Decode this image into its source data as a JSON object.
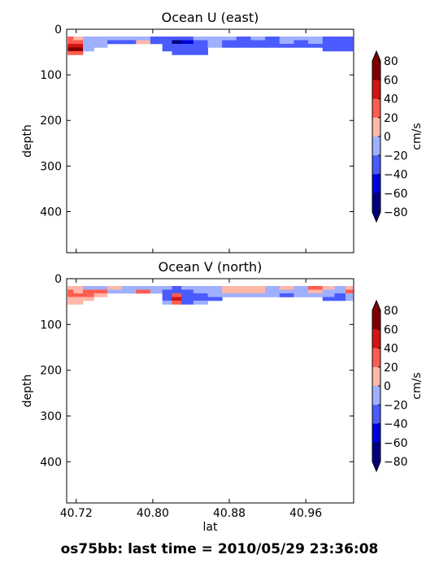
{
  "figure_title": "os75bb: last time = 2010/05/29 23:36:08",
  "colors": {
    "levels": [
      "#00007f",
      "#0000dd",
      "#4a5bff",
      "#9fb0ff",
      "#ffb7a8",
      "#ff5c50",
      "#d11414",
      "#7f0000"
    ]
  },
  "chart_data": [
    {
      "type": "heatmap",
      "title": "Ocean U (east)",
      "xlabel": "",
      "ylabel": "depth",
      "xlim": [
        40.71,
        41.01
      ],
      "ylim": [
        490,
        0
      ],
      "x_ticks": [
        "40.72",
        "40.80",
        "40.88",
        "40.96"
      ],
      "y_ticks": [
        "0",
        "100",
        "200",
        "300",
        "400"
      ],
      "colorbar": {
        "label": "cm/s",
        "ticks": [
          "80",
          "60",
          "40",
          "20",
          "0",
          "−20",
          "−40",
          "−60",
          "−80"
        ],
        "range": [
          -80,
          80
        ]
      },
      "grid": false,
      "depths": [
        20,
        28,
        36,
        44,
        52
      ],
      "columns": [
        {
          "lat": 40.712,
          "v": [
            20,
            25,
            45,
            65,
            20
          ]
        },
        {
          "lat": 40.722,
          "v": [
            15,
            30,
            40,
            60,
            25
          ]
        },
        {
          "lat": 40.732,
          "v": [
            -5,
            -10,
            -15,
            -20,
            null
          ]
        },
        {
          "lat": 40.745,
          "v": [
            -10,
            -15,
            -15,
            null,
            null
          ]
        },
        {
          "lat": 40.76,
          "v": [
            -15,
            -25,
            null,
            null,
            null
          ]
        },
        {
          "lat": 40.775,
          "v": [
            -20,
            -30,
            null,
            null,
            null
          ]
        },
        {
          "lat": 40.79,
          "v": [
            -5,
            10,
            null,
            null,
            null
          ]
        },
        {
          "lat": 40.805,
          "v": [
            -25,
            -35,
            null,
            null,
            null
          ]
        },
        {
          "lat": 40.815,
          "v": [
            -30,
            -40,
            -35,
            -30,
            null
          ]
        },
        {
          "lat": 40.825,
          "v": [
            -40,
            -65,
            -40,
            -35,
            -30
          ]
        },
        {
          "lat": 40.835,
          "v": [
            -35,
            -45,
            -40,
            -35,
            -30
          ]
        },
        {
          "lat": 40.85,
          "v": [
            -15,
            -25,
            -40,
            -35,
            -30
          ]
        },
        {
          "lat": 40.865,
          "v": [
            -5,
            -10,
            -20,
            null,
            null
          ]
        },
        {
          "lat": 40.88,
          "v": [
            -20,
            -30,
            -35,
            null,
            null
          ]
        },
        {
          "lat": 40.895,
          "v": [
            -25,
            -35,
            -40,
            null,
            null
          ]
        },
        {
          "lat": 40.91,
          "v": [
            -15,
            -25,
            -35,
            null,
            null
          ]
        },
        {
          "lat": 40.925,
          "v": [
            -30,
            -30,
            -35,
            null,
            null
          ]
        },
        {
          "lat": 40.94,
          "v": [
            -10,
            -20,
            -30,
            null,
            null
          ]
        },
        {
          "lat": 40.955,
          "v": [
            -20,
            -30,
            -35,
            null,
            null
          ]
        },
        {
          "lat": 40.97,
          "v": [
            -15,
            -10,
            -25,
            null,
            null
          ]
        },
        {
          "lat": 40.985,
          "v": [
            -25,
            -35,
            -30,
            -30,
            null
          ]
        },
        {
          "lat": 40.995,
          "v": [
            -30,
            -40,
            -30,
            -25,
            null
          ]
        },
        {
          "lat": 41.008,
          "v": [
            -35,
            -25,
            -25,
            -30,
            null
          ]
        }
      ]
    },
    {
      "type": "heatmap",
      "title": "Ocean V (north)",
      "xlabel": "lat",
      "ylabel": "depth",
      "xlim": [
        40.71,
        41.01
      ],
      "ylim": [
        490,
        0
      ],
      "x_ticks": [
        "40.72",
        "40.80",
        "40.88",
        "40.96"
      ],
      "y_ticks": [
        "0",
        "100",
        "200",
        "300",
        "400"
      ],
      "colorbar": {
        "label": "cm/s",
        "ticks": [
          "80",
          "60",
          "40",
          "20",
          "0",
          "−20",
          "−40",
          "−60",
          "−80"
        ],
        "range": [
          -80,
          80
        ]
      },
      "grid": false,
      "depths": [
        20,
        28,
        36,
        44,
        52
      ],
      "columns": [
        {
          "lat": 40.712,
          "v": [
            15,
            25,
            20,
            10,
            10
          ]
        },
        {
          "lat": 40.722,
          "v": [
            5,
            15,
            20,
            10,
            5
          ]
        },
        {
          "lat": 40.732,
          "v": [
            -5,
            25,
            30,
            10,
            null
          ]
        },
        {
          "lat": 40.745,
          "v": [
            -10,
            20,
            10,
            null,
            null
          ]
        },
        {
          "lat": 40.76,
          "v": [
            10,
            -10,
            null,
            null,
            null
          ]
        },
        {
          "lat": 40.775,
          "v": [
            -10,
            -15,
            null,
            null,
            null
          ]
        },
        {
          "lat": 40.79,
          "v": [
            -10,
            25,
            null,
            null,
            null
          ]
        },
        {
          "lat": 40.805,
          "v": [
            -15,
            -15,
            null,
            null,
            null
          ]
        },
        {
          "lat": 40.815,
          "v": [
            -20,
            -25,
            -30,
            -25,
            -20
          ]
        },
        {
          "lat": 40.825,
          "v": [
            -25,
            -30,
            25,
            45,
            25
          ]
        },
        {
          "lat": 40.835,
          "v": [
            -20,
            -25,
            -25,
            -30,
            -25
          ]
        },
        {
          "lat": 40.85,
          "v": [
            -15,
            -20,
            -25,
            -25,
            -20
          ]
        },
        {
          "lat": 40.865,
          "v": [
            -10,
            -15,
            -20,
            -25,
            null
          ]
        },
        {
          "lat": 40.88,
          "v": [
            10,
            15,
            -15,
            null,
            null
          ]
        },
        {
          "lat": 40.895,
          "v": [
            10,
            15,
            -10,
            null,
            null
          ]
        },
        {
          "lat": 40.91,
          "v": [
            5,
            10,
            -10,
            null,
            null
          ]
        },
        {
          "lat": 40.925,
          "v": [
            -15,
            -10,
            -20,
            null,
            null
          ]
        },
        {
          "lat": 40.94,
          "v": [
            10,
            -10,
            -25,
            null,
            null
          ]
        },
        {
          "lat": 40.955,
          "v": [
            -5,
            -15,
            -20,
            null,
            null
          ]
        },
        {
          "lat": 40.97,
          "v": [
            35,
            15,
            -20,
            null,
            null
          ]
        },
        {
          "lat": 40.985,
          "v": [
            10,
            -10,
            -20,
            -25,
            null
          ]
        },
        {
          "lat": 40.995,
          "v": [
            -15,
            -20,
            -25,
            -25,
            null
          ]
        },
        {
          "lat": 41.008,
          "v": [
            15,
            20,
            -10,
            -10,
            null
          ]
        }
      ]
    }
  ]
}
